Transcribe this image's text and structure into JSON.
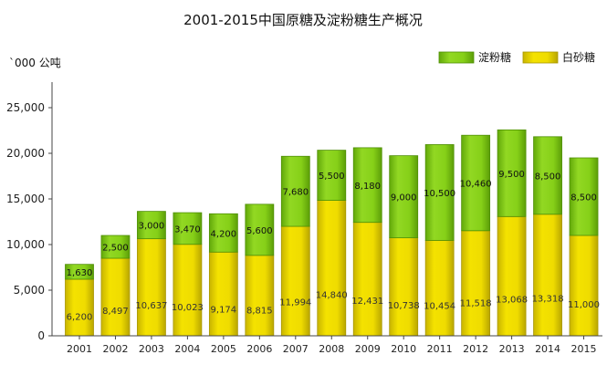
{
  "chart_data": {
    "type": "bar",
    "stacked": true,
    "title": "2001-2015中国原糖及淀粉糖生产概况",
    "unit_label": "`000 公吨",
    "categories": [
      "2001",
      "2002",
      "2003",
      "2004",
      "2005",
      "2006",
      "2007",
      "2008",
      "2009",
      "2010",
      "2011",
      "2012",
      "2013",
      "2014",
      "2015"
    ],
    "series": [
      {
        "name": "白砂糖",
        "color": "#e6d200",
        "values": [
          6200,
          8497,
          10637,
          10023,
          9174,
          8815,
          11994,
          14840,
          12431,
          10738,
          10454,
          11518,
          13068,
          13318,
          11000
        ]
      },
      {
        "name": "淀粉糖",
        "color": "#7ac70c",
        "values": [
          1630,
          2500,
          3000,
          3470,
          4200,
          5600,
          7680,
          5500,
          8180,
          9000,
          10500,
          10460,
          9500,
          8500,
          8500
        ]
      }
    ],
    "value_labels": {
      "白砂糖": [
        "6,200",
        "8,497",
        "10,637",
        "10,023",
        "9,174",
        "8,815",
        "11,994",
        "14,840",
        "12,431",
        "10,738",
        "10,454",
        "11,518",
        "13,068",
        "13,318",
        "11,000"
      ],
      "淀粉糖": [
        "1,630",
        "2,500",
        "3,000",
        "3,470",
        "4,200",
        "5,600",
        "7,680",
        "5,500",
        "8,180",
        "9,000",
        "10,500",
        "10,460",
        "9,500",
        "8,500",
        "8,500"
      ]
    },
    "yticks": [
      "0",
      "5,000",
      "10,000",
      "15,000",
      "20,000",
      "25,000"
    ],
    "ylim": [
      0,
      28000
    ],
    "legend_order": [
      "淀粉糖",
      "白砂糖"
    ],
    "legend_position": "top-right",
    "grid": false
  }
}
